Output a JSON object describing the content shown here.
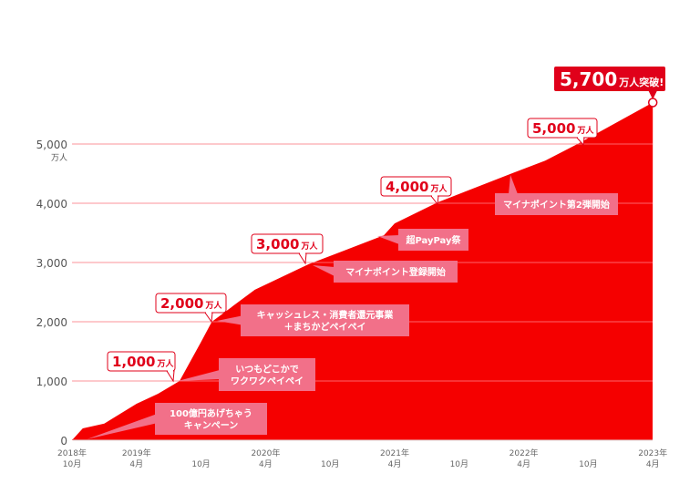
{
  "chart_data": {
    "type": "area",
    "title": "",
    "xlabel": "",
    "ylabel": "",
    "y_unit_label": "万人",
    "ylim": [
      0,
      5700
    ],
    "yticks": [
      {
        "value": 0,
        "label": "0"
      },
      {
        "value": 1000,
        "label": "1,000"
      },
      {
        "value": 2000,
        "label": "2,000"
      },
      {
        "value": 3000,
        "label": "3,000"
      },
      {
        "value": 4000,
        "label": "4,000"
      },
      {
        "value": 5000,
        "label": "5,000"
      }
    ],
    "xticks": [
      {
        "date": "2018-10",
        "year": "2018年",
        "month": "10月"
      },
      {
        "date": "2019-04",
        "year": "2019年",
        "month": "4月"
      },
      {
        "date": "2019-10",
        "year": "",
        "month": "10月"
      },
      {
        "date": "2020-04",
        "year": "2020年",
        "month": "4月"
      },
      {
        "date": "2020-10",
        "year": "",
        "month": "10月"
      },
      {
        "date": "2021-04",
        "year": "2021年",
        "month": "4月"
      },
      {
        "date": "2021-10",
        "year": "",
        "month": "10月"
      },
      {
        "date": "2022-04",
        "year": "2022年",
        "month": "4月"
      },
      {
        "date": "2022-10",
        "year": "",
        "month": "10月"
      },
      {
        "date": "2023-04",
        "year": "2023年",
        "month": "4月"
      }
    ],
    "grid": true,
    "series": [
      {
        "color": "#f50000",
        "points": [
          {
            "date": "2018-10",
            "value": 0
          },
          {
            "date": "2018-11",
            "value": 200
          },
          {
            "date": "2019-01",
            "value": 280
          },
          {
            "date": "2019-04",
            "value": 615
          },
          {
            "date": "2019-06",
            "value": 785
          },
          {
            "date": "2019-08",
            "value": 1000
          },
          {
            "date": "2019-10",
            "value": 1660
          },
          {
            "date": "2019-11",
            "value": 2000
          },
          {
            "date": "2020-03",
            "value": 2540
          },
          {
            "date": "2020-08",
            "value": 2970
          },
          {
            "date": "2021-03",
            "value": 3460
          },
          {
            "date": "2021-04",
            "value": 3660
          },
          {
            "date": "2021-08",
            "value": 4015
          },
          {
            "date": "2022-03",
            "value": 4510
          },
          {
            "date": "2022-06",
            "value": 4720
          },
          {
            "date": "2022-09",
            "value": 5000
          },
          {
            "date": "2023-04",
            "value": 5700
          }
        ]
      }
    ],
    "milestones": [
      {
        "number": "1,000",
        "unit": "万人"
      },
      {
        "number": "2,000",
        "unit": "万人"
      },
      {
        "number": "3,000",
        "unit": "万人"
      },
      {
        "number": "4,000",
        "unit": "万人"
      },
      {
        "number": "5,000",
        "unit": "万人"
      }
    ],
    "headline": {
      "number": "5,700",
      "unit": "万人突破!"
    },
    "events": [
      {
        "lines": [
          "100億円あげちゃう",
          "キャンペーン"
        ]
      },
      {
        "lines": [
          "いつもどこかで",
          "ワクワクペイペイ"
        ]
      },
      {
        "lines": [
          "キャッシュレス・消費者還元事業",
          "＋まちかどペイペイ"
        ]
      },
      {
        "lines": [
          "マイナポイント登録開始"
        ]
      },
      {
        "lines": [
          "超PayPay祭"
        ]
      },
      {
        "lines": [
          "マイナポイント第2弾開始"
        ]
      }
    ],
    "colors": {
      "area": "#f50000",
      "event_box": "#f27089",
      "milestone": "#e0001a"
    }
  }
}
